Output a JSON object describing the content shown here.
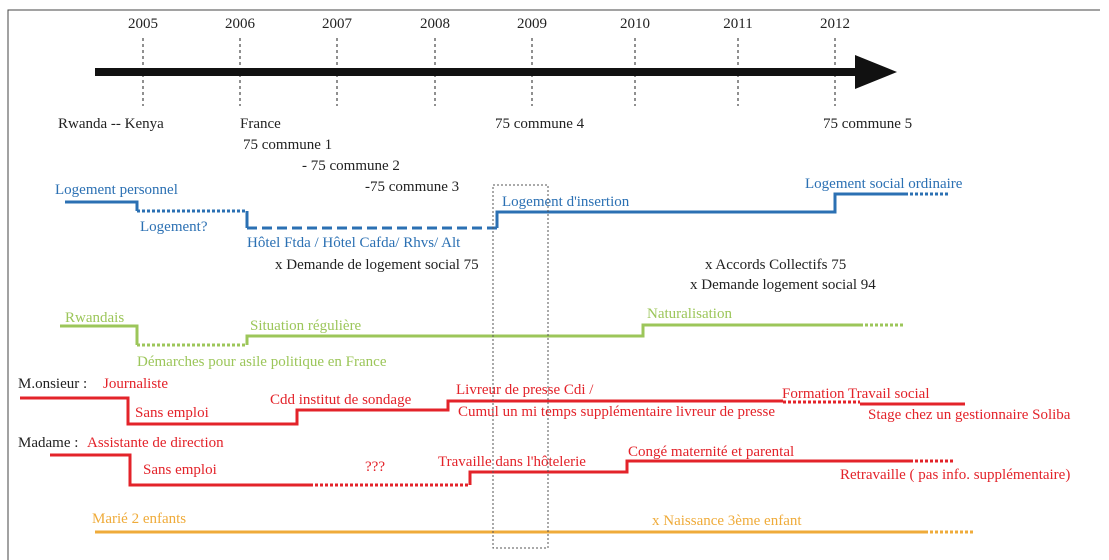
{
  "years": [
    "2005",
    "2006",
    "2007",
    "2008",
    "2009",
    "2010",
    "2011",
    "2012"
  ],
  "places": [
    "Rwanda -- Kenya",
    "France",
    "75 commune 1",
    "- 75 commune 2",
    "-75 commune 3",
    "75 commune 4",
    "75 commune 5"
  ],
  "housing": {
    "labels": [
      "Logement personnel",
      "Logement?",
      "Hôtel Ftda / Hôtel Cafda/ Rhvs/ Alt",
      "Logement d'insertion",
      "Logement social ordinaire"
    ],
    "events": [
      "x Demande de logement social 75",
      "x Accords Collectifs 75",
      "x Demande logement social 94"
    ]
  },
  "status": [
    "Rwandais",
    "Situation régulière",
    "Naturalisation",
    "Démarches pour asile politique en France"
  ],
  "monsieur": {
    "name": "M.onsieur :",
    "labels": [
      "Journaliste",
      "Sans emploi",
      "Cdd institut de sondage",
      "Livreur de presse Cdi /",
      "Cumul un mi temps supplémentaire livreur de presse",
      "Formation Travail social",
      "Stage chez un gestionnaire Soliba"
    ]
  },
  "madame": {
    "name": "Madame :",
    "labels": [
      "Assistante de direction",
      "Sans emploi",
      "???",
      "Travaille dans l'hôtelerie",
      "Congé maternité et parental",
      "Retravaille ( pas info. supplémentaire)"
    ]
  },
  "family": [
    "Marié 2 enfants",
    "x Naissance 3ème enfant"
  ]
}
